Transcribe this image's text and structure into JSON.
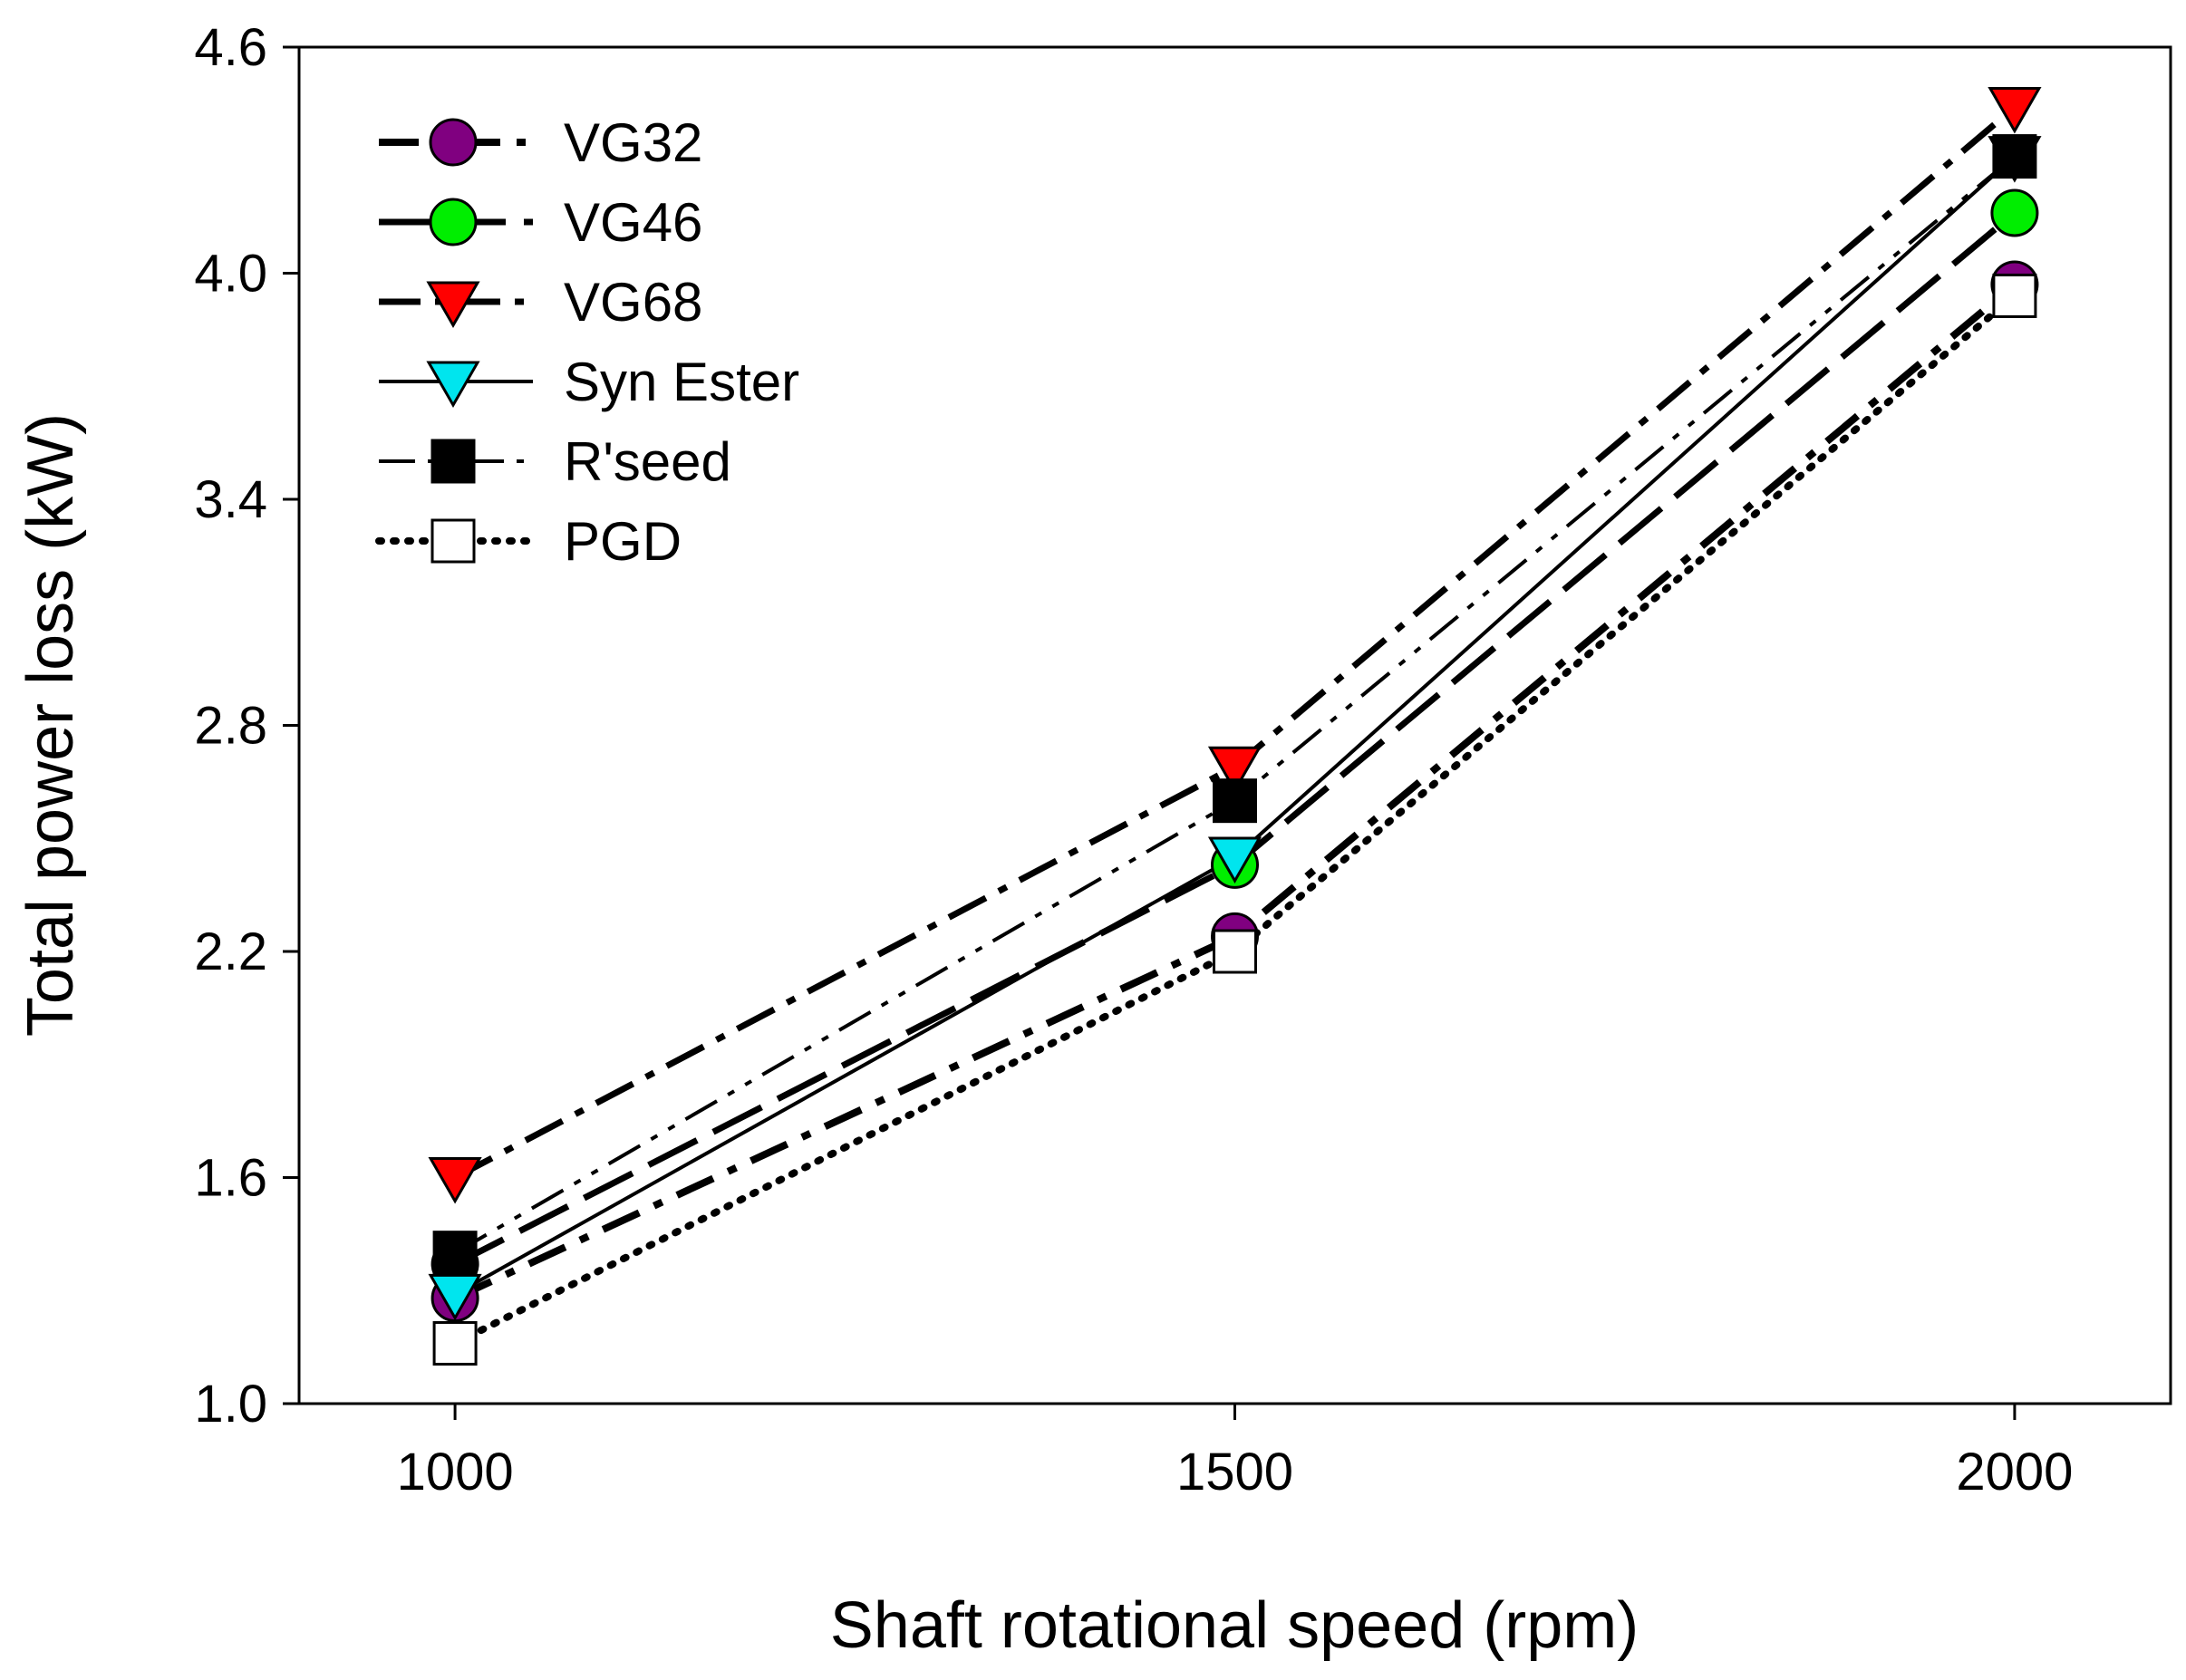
{
  "chart_data": {
    "type": "line",
    "title": "",
    "xlabel": "Shaft rotational speed (rpm)",
    "ylabel": "Total power loss (kW)",
    "x": [
      1000,
      1500,
      2000
    ],
    "x_ticks": [
      "1000",
      "1500",
      "2000"
    ],
    "xlim": [
      900,
      2100
    ],
    "ylim": [
      1.0,
      4.6
    ],
    "y_ticks": [
      "1.0",
      "1.6",
      "2.2",
      "2.8",
      "3.4",
      "4.0",
      "4.6"
    ],
    "grid": false,
    "legend_position": "top-left",
    "series": [
      {
        "name": "VG32",
        "values": [
          1.28,
          2.24,
          3.97
        ],
        "marker": "circle",
        "marker_color": "#800080",
        "line_style": "dash-dot-thick"
      },
      {
        "name": "VG46",
        "values": [
          1.37,
          2.43,
          4.16
        ],
        "marker": "circle",
        "marker_color": "#00ee00",
        "line_style": "long-dash"
      },
      {
        "name": "VG68",
        "values": [
          1.6,
          2.69,
          4.44
        ],
        "marker": "triangle-down",
        "marker_color": "#ff0000",
        "line_style": "dash-dot"
      },
      {
        "name": "Syn Ester",
        "values": [
          1.29,
          2.45,
          4.31
        ],
        "marker": "triangle-down",
        "marker_color": "#00e5ee",
        "line_style": "solid"
      },
      {
        "name": "R'seed",
        "values": [
          1.4,
          2.6,
          4.31
        ],
        "marker": "square",
        "marker_color": "#000000",
        "line_style": "dash-dot-dot"
      },
      {
        "name": "PGD",
        "values": [
          1.16,
          2.2,
          3.94
        ],
        "marker": "square",
        "marker_color": "#ffffff",
        "line_style": "dotted"
      }
    ]
  }
}
